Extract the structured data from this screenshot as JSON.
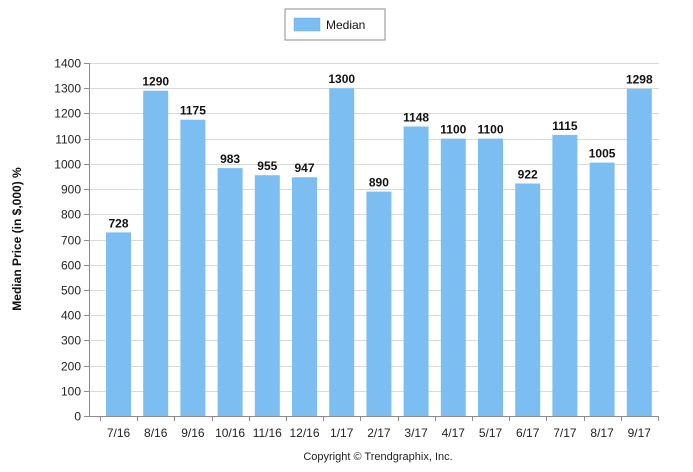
{
  "chart_data": {
    "type": "bar",
    "categories": [
      "7/16",
      "8/16",
      "9/16",
      "10/16",
      "11/16",
      "12/16",
      "1/17",
      "2/17",
      "3/17",
      "4/17",
      "5/17",
      "6/17",
      "7/17",
      "8/17",
      "9/17"
    ],
    "series": [
      {
        "name": "Median",
        "values": [
          728,
          1290,
          1175,
          983,
          955,
          947,
          1300,
          890,
          1148,
          1100,
          1100,
          922,
          1115,
          1005,
          1298
        ],
        "color": "#7dbef2"
      }
    ],
    "data_labels": [
      "728",
      "1290",
      "1175",
      "983",
      "955",
      "947",
      "1300",
      "890",
      "1148",
      "1100",
      "1100",
      "922",
      "1115",
      "1005",
      "1298"
    ],
    "title": "",
    "xlabel": "",
    "ylabel": "Median Price (in $,000) %",
    "ylim": [
      0,
      1400
    ],
    "yticks": [
      0,
      100,
      200,
      300,
      400,
      500,
      600,
      700,
      800,
      900,
      1000,
      1100,
      1200,
      1300,
      1400
    ],
    "ytick_labels": [
      "0",
      "100",
      "200",
      "300",
      "400",
      "500",
      "600",
      "700",
      "800",
      "900",
      "1000",
      "1100",
      "1200",
      "1300",
      "1400"
    ],
    "grid": true,
    "legend_position": "top-center",
    "gridline_color": "#d9d9d9",
    "axis_color": "#8c8c8c"
  },
  "footer": {
    "copyright": "Copyright © Trendgraphix, Inc."
  }
}
